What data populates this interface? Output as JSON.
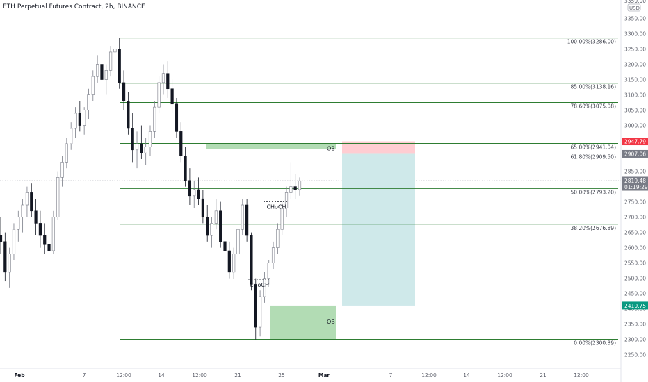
{
  "header": {
    "title": "ETH Perpetual Futures Contract, 2h, BINANCE"
  },
  "price_axis": {
    "currency": "USD",
    "ticks": [
      3350,
      3300,
      3250,
      3200,
      3150,
      3100,
      3050,
      3000,
      2850,
      2750,
      2700,
      2650,
      2600,
      2550,
      2500,
      2450,
      2400,
      2350,
      2300,
      2250
    ],
    "top_partial": "3350.00",
    "badges": [
      {
        "text": "2947.79",
        "value": 2947.79,
        "color": "#f23645"
      },
      {
        "text": "2907.06",
        "value": 2907.06,
        "color": "#787b86"
      },
      {
        "text": "2819.48",
        "sub": "01:19:29",
        "value": 2819.48,
        "color": "#787b86"
      },
      {
        "text": "2410.75",
        "value": 2410.75,
        "color": "#089981"
      }
    ]
  },
  "time_axis": {
    "labels": [
      "Feb",
      "7",
      "12:00",
      "14",
      "12:00",
      "21",
      "25",
      "Mar",
      "7",
      "12:00",
      "14",
      "12:00",
      "21",
      "12:00"
    ],
    "bold": [
      "Feb",
      "Mar"
    ]
  },
  "fibonacci": {
    "color": "#2e7d32",
    "levels": [
      {
        "label": "100.00%(3286.00)",
        "price": 3286.0
      },
      {
        "label": "85.00%(3138.16)",
        "price": 3138.16
      },
      {
        "label": "78.60%(3075.08)",
        "price": 3075.08
      },
      {
        "label": "65.00%(2941.04)",
        "price": 2941.04
      },
      {
        "label": "61.80%(2909.50)",
        "price": 2909.5
      },
      {
        "label": "50.00%(2793.20)",
        "price": 2793.2
      },
      {
        "label": "38.20%(2676.89)",
        "price": 2676.89
      },
      {
        "label": "0.00%(2300.39)",
        "price": 2300.39
      }
    ]
  },
  "order_blocks": [
    {
      "label": "OB",
      "top": 2941.04,
      "bottom": 2924.0,
      "color": "#a5d6a7"
    },
    {
      "label": "OB",
      "top": 2410.75,
      "bottom": 2300.39,
      "color": "#a5d6a7"
    }
  ],
  "choch_labels": [
    {
      "label": "CHoCH",
      "price": 2750,
      "below": false
    },
    {
      "label": "CHoCH",
      "price": 2497,
      "below": true
    }
  ],
  "position": {
    "type": "short",
    "stop": 2947.79,
    "entry": 2907.06,
    "target": 2410.75,
    "stop_color": "#ffcdd2",
    "target_color": "#cfe9ea"
  },
  "chart_data": {
    "type": "candlestick",
    "title": "ETH Perpetual Futures Contract, 2h, BINANCE",
    "x_axis": [
      "Feb",
      "7",
      "12:00",
      "14",
      "12:00",
      "21",
      "25",
      "Mar",
      "7",
      "12:00",
      "14",
      "12:00",
      "21",
      "12:00"
    ],
    "ylim": [
      2200,
      3400
    ],
    "last_price": 2819.48,
    "series": [
      {
        "values": [
          [
            2640,
            2700,
            2580,
            2620
          ],
          [
            2620,
            2650,
            2490,
            2520
          ],
          [
            2520,
            2600,
            2470,
            2580
          ],
          [
            2580,
            2680,
            2560,
            2660
          ],
          [
            2660,
            2720,
            2620,
            2700
          ],
          [
            2700,
            2760,
            2650,
            2740
          ],
          [
            2740,
            2800,
            2700,
            2780
          ],
          [
            2780,
            2810,
            2700,
            2720
          ],
          [
            2720,
            2760,
            2640,
            2680
          ],
          [
            2680,
            2720,
            2600,
            2640
          ],
          [
            2640,
            2680,
            2580,
            2610
          ],
          [
            2610,
            2640,
            2560,
            2590
          ],
          [
            2590,
            2720,
            2580,
            2700
          ],
          [
            2700,
            2850,
            2690,
            2830
          ],
          [
            2830,
            2900,
            2800,
            2880
          ],
          [
            2880,
            2960,
            2860,
            2940
          ],
          [
            2940,
            3010,
            2920,
            2990
          ],
          [
            2990,
            3060,
            2960,
            3040
          ],
          [
            3040,
            3080,
            2980,
            3000
          ],
          [
            3000,
            3060,
            2970,
            3050
          ],
          [
            3050,
            3120,
            3020,
            3100
          ],
          [
            3100,
            3180,
            3080,
            3160
          ],
          [
            3160,
            3230,
            3140,
            3200
          ],
          [
            3200,
            3220,
            3130,
            3150
          ],
          [
            3150,
            3200,
            3100,
            3180
          ],
          [
            3180,
            3260,
            3160,
            3240
          ],
          [
            3240,
            3285,
            3200,
            3250
          ],
          [
            3250,
            3286,
            3120,
            3140
          ],
          [
            3140,
            3180,
            3050,
            3080
          ],
          [
            3080,
            3110,
            2970,
            2990
          ],
          [
            2990,
            3040,
            2880,
            2920
          ],
          [
            2920,
            2980,
            2860,
            2940
          ],
          [
            2940,
            3000,
            2890,
            2910
          ],
          [
            2910,
            2960,
            2870,
            2930
          ],
          [
            2930,
            3000,
            2900,
            2980
          ],
          [
            2980,
            3080,
            2960,
            3060
          ],
          [
            3060,
            3160,
            3040,
            3140
          ],
          [
            3140,
            3200,
            3100,
            3170
          ],
          [
            3170,
            3210,
            3090,
            3120
          ],
          [
            3120,
            3150,
            3040,
            3070
          ],
          [
            3070,
            3090,
            2960,
            2980
          ],
          [
            2980,
            3010,
            2880,
            2900
          ],
          [
            2900,
            2930,
            2800,
            2820
          ],
          [
            2820,
            2860,
            2740,
            2770
          ],
          [
            2770,
            2820,
            2730,
            2790
          ],
          [
            2790,
            2830,
            2740,
            2760
          ],
          [
            2760,
            2790,
            2680,
            2700
          ],
          [
            2700,
            2740,
            2620,
            2640
          ],
          [
            2640,
            2700,
            2600,
            2680
          ],
          [
            2680,
            2760,
            2660,
            2720
          ],
          [
            2720,
            2750,
            2600,
            2620
          ],
          [
            2620,
            2660,
            2560,
            2590
          ],
          [
            2590,
            2620,
            2500,
            2520
          ],
          [
            2520,
            2600,
            2497,
            2580
          ],
          [
            2580,
            2680,
            2560,
            2660
          ],
          [
            2660,
            2760,
            2640,
            2740
          ],
          [
            2740,
            2760,
            2620,
            2640
          ],
          [
            2640,
            2650,
            2460,
            2480
          ],
          [
            2480,
            2500,
            2300,
            2340
          ],
          [
            2340,
            2460,
            2310,
            2440
          ],
          [
            2440,
            2520,
            2420,
            2500
          ],
          [
            2500,
            2560,
            2480,
            2550
          ],
          [
            2550,
            2620,
            2530,
            2600
          ],
          [
            2600,
            2680,
            2580,
            2660
          ],
          [
            2660,
            2750,
            2640,
            2730
          ],
          [
            2730,
            2800,
            2700,
            2780
          ],
          [
            2780,
            2880,
            2760,
            2800
          ],
          [
            2800,
            2840,
            2760,
            2790
          ],
          [
            2790,
            2830,
            2770,
            2819
          ]
        ]
      }
    ]
  }
}
